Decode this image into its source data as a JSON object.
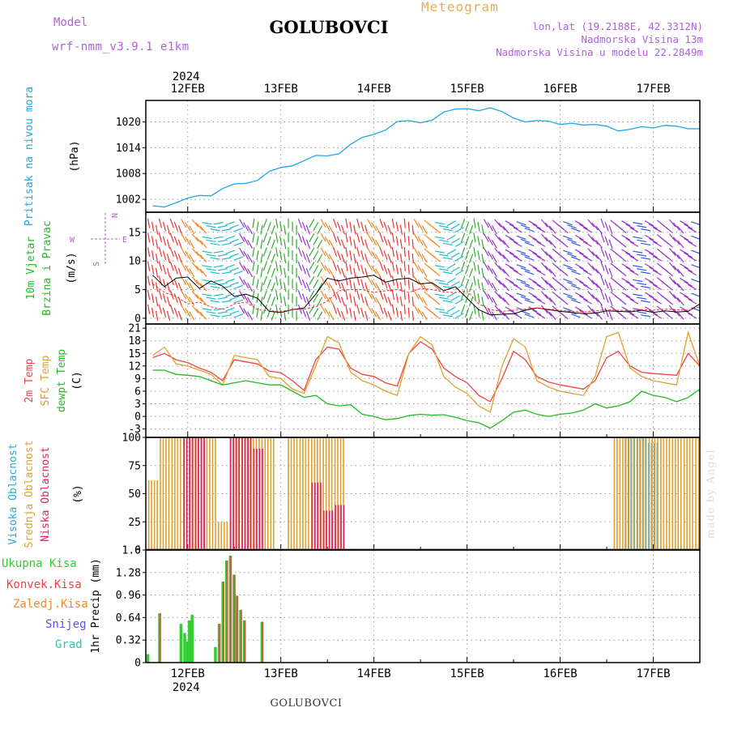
{
  "header": {
    "model_label": "Model",
    "model_name": "wrf-nmm_v3.9.1 e1km",
    "station": "GOLUBOVCI",
    "meteogram_label": "Meteogram",
    "lonlat": "lon,lat (19.2188E, 42.3312N)",
    "elevation": "Nadmorska Visina 13m",
    "model_elevation": "Nadmorska Visina u modelu 22.2849m"
  },
  "footer": {
    "station": "GOLUBOVCI",
    "made_by": "made by Angel"
  },
  "colors": {
    "pressure": "#1ea6e8",
    "wind_speed": "#000000",
    "gust": "#ff2a2a",
    "temp2m": "#ee4444",
    "sfc_temp": "#e0a030",
    "dewpt": "#22bb22",
    "cloud_high": "#22aadd",
    "cloud_mid": "#e0a030",
    "cloud_low": "#dd2266",
    "rain_total": "#33cc33",
    "rain_conv": "#e84444",
    "freezing": "#f08a30",
    "snow": "#5555ee",
    "hail": "#22ccaa"
  },
  "chart_data": [
    {
      "type": "line",
      "title": "",
      "ylabel": "Pritisak na nivou mora",
      "yunit": "(hPa)",
      "ylim": [
        999,
        1025
      ],
      "yticks": [
        1002,
        1008,
        1014,
        1020
      ],
      "x_axis_year": "2024",
      "x_tick_labels": [
        "12FEB",
        "13FEB",
        "14FEB",
        "15FEB",
        "16FEB",
        "17FEB"
      ],
      "x": [
        11.625,
        11.75,
        11.875,
        12.0,
        12.125,
        12.25,
        12.375,
        12.5,
        12.625,
        12.75,
        12.875,
        13.0,
        13.125,
        13.25,
        13.375,
        13.5,
        13.625,
        13.75,
        13.875,
        14.0,
        14.125,
        14.25,
        14.375,
        14.5,
        14.625,
        14.75,
        14.875,
        15.0,
        15.125,
        15.25,
        15.375,
        15.5,
        15.625,
        15.75,
        15.875,
        16.0,
        16.125,
        16.25,
        16.375,
        16.5,
        16.625,
        16.75,
        16.875,
        17.0,
        17.125,
        17.25,
        17.375,
        17.5
      ],
      "series": [
        {
          "name": "",
          "values": [
            1000.5,
            1000.2,
            1001.2,
            1002.3,
            1002.9,
            1002.8,
            1004.5,
            1005.6,
            1005.7,
            1006.4,
            1008.5,
            1009.4,
            1009.8,
            1011.0,
            1012.2,
            1012.1,
            1012.6,
            1014.8,
            1016.4,
            1017.1,
            1018.1,
            1020.1,
            1020.3,
            1019.8,
            1020.4,
            1022.3,
            1023.0,
            1023.1,
            1022.6,
            1023.3,
            1022.4,
            1020.9,
            1020.0,
            1020.3,
            1020.2,
            1019.4,
            1019.7,
            1019.3,
            1019.4,
            1019.0,
            1017.9,
            1018.3,
            1018.9,
            1018.6,
            1019.2,
            1019.0,
            1018.4,
            1018.4
          ]
        }
      ]
    },
    {
      "type": "line",
      "ylabel": "10m Vjetar Brzina i Pravac",
      "yunit": "(m/s)",
      "ylim": [
        -1,
        18.5
      ],
      "yticks": [
        0,
        5,
        10,
        15
      ],
      "compass": {
        "n": "N",
        "s": "S",
        "w": "W",
        "e": "E"
      },
      "x": [
        11.625,
        11.75,
        11.875,
        12.0,
        12.125,
        12.25,
        12.375,
        12.5,
        12.625,
        12.75,
        12.875,
        13.0,
        13.125,
        13.25,
        13.375,
        13.5,
        13.625,
        13.75,
        13.875,
        14.0,
        14.125,
        14.25,
        14.375,
        14.5,
        14.625,
        14.75,
        14.875,
        15.0,
        15.125,
        15.25,
        15.375,
        15.5,
        15.625,
        15.75,
        15.875,
        16.0,
        16.125,
        16.25,
        16.375,
        16.5,
        16.625,
        16.75,
        16.875,
        17.0,
        17.125,
        17.25,
        17.375,
        17.5
      ],
      "series": [
        {
          "name": "",
          "values": [
            7.5,
            5.5,
            7.0,
            7.2,
            5.2,
            6.5,
            5.6,
            3.8,
            4.2,
            3.5,
            1.2,
            1.0,
            1.5,
            1.8,
            4.2,
            7.0,
            6.5,
            7.0,
            7.2,
            7.5,
            6.3,
            6.8,
            7.0,
            6.0,
            6.2,
            4.8,
            5.5,
            3.5,
            1.5,
            0.6,
            0.7,
            0.8,
            1.4,
            1.8,
            1.5,
            1.2,
            1.0,
            0.8,
            0.9,
            1.3,
            1.2,
            1.1,
            1.4,
            1.0,
            1.3,
            1.1,
            1.2,
            2.5
          ]
        },
        {
          "name": "",
          "values": [
            6.0,
            4.5,
            3.8,
            2.5,
            2.8,
            2.0,
            1.5,
            2.5,
            2.8,
            1.5,
            1.3,
            1.2,
            1.5,
            1.6,
            2.0,
            3.0,
            4.8,
            5.0,
            5.0,
            4.5,
            4.8,
            5.0,
            4.5,
            5.2,
            5.0,
            4.6,
            4.5,
            4.8,
            2.5,
            1.5,
            1.2,
            1.4,
            1.6,
            1.8,
            1.6,
            1.4,
            1.2,
            1.1,
            1.3,
            1.5,
            1.4,
            1.3,
            1.5,
            1.4,
            1.6,
            1.5,
            1.4,
            2.0
          ]
        }
      ],
      "wind_vectors": {
        "x": [
          11.625,
          11.75,
          11.875,
          12.0,
          12.125,
          12.25,
          12.375,
          12.5,
          12.625,
          12.75,
          12.875,
          13.0,
          13.125,
          13.25,
          13.375,
          13.5,
          13.625,
          13.75,
          13.875,
          14.0,
          14.125,
          14.25,
          14.375,
          14.5,
          14.625,
          14.75,
          14.875,
          15.0,
          15.125,
          15.25,
          15.375,
          15.5,
          15.625,
          15.75,
          15.875,
          16.0,
          16.125,
          16.25,
          16.375,
          16.5,
          16.625,
          16.75,
          16.875,
          17.0,
          17.125,
          17.25,
          17.375,
          17.5
        ],
        "direction_deg": [
          170,
          165,
          160,
          150,
          140,
          100,
          80,
          70,
          330,
          10,
          20,
          350,
          0,
          340,
          30,
          150,
          160,
          170,
          165,
          150,
          160,
          170,
          175,
          150,
          130,
          100,
          60,
          20,
          350,
          330,
          320,
          300,
          290,
          300,
          320,
          310,
          290,
          300,
          320,
          340,
          310,
          300,
          280,
          300,
          310,
          320,
          300,
          290
        ],
        "speed": [
          7.5,
          5.5,
          7.0,
          7.2,
          5.2,
          6.5,
          5.6,
          3.8,
          4.2,
          3.5,
          1.2,
          1.0,
          1.5,
          1.8,
          4.2,
          7.0,
          6.5,
          7.0,
          7.2,
          7.5,
          6.3,
          6.8,
          7.0,
          6.0,
          6.2,
          4.8,
          5.5,
          3.5,
          1.5,
          0.6,
          0.7,
          0.8,
          1.4,
          1.8,
          1.5,
          1.2,
          1.0,
          0.8,
          0.9,
          1.3,
          1.2,
          1.1,
          1.4,
          1.0,
          1.3,
          1.1,
          1.2,
          2.5
        ]
      }
    },
    {
      "type": "line",
      "ylabel": "2m Temp",
      "ylabel2": "SFC Temp",
      "ylabel3": "dewpt Temp",
      "yunit": "(C)",
      "ylim": [
        -5,
        22
      ],
      "yticks": [
        -3,
        0,
        3,
        6,
        9,
        12,
        15,
        18,
        21
      ],
      "x": [
        11.625,
        11.75,
        11.875,
        12.0,
        12.125,
        12.25,
        12.375,
        12.5,
        12.625,
        12.75,
        12.875,
        13.0,
        13.125,
        13.25,
        13.375,
        13.5,
        13.625,
        13.75,
        13.875,
        14.0,
        14.125,
        14.25,
        14.375,
        14.5,
        14.625,
        14.75,
        14.875,
        15.0,
        15.125,
        15.25,
        15.375,
        15.5,
        15.625,
        15.75,
        15.875,
        16.0,
        16.125,
        16.25,
        16.375,
        16.5,
        16.625,
        16.75,
        16.875,
        17.0,
        17.125,
        17.25,
        17.375,
        17.5
      ],
      "series": [
        {
          "name": "2m Temp",
          "values": [
            14,
            15,
            13.5,
            12.8,
            11.5,
            10.5,
            8.5,
            13.5,
            13,
            12.5,
            10.8,
            10.4,
            8.5,
            6.2,
            13.5,
            16.5,
            16,
            11.5,
            10,
            9.5,
            8,
            7.2,
            15,
            17.8,
            16,
            11.5,
            9.5,
            8,
            5,
            3.5,
            9,
            15.5,
            13.5,
            9.5,
            8.2,
            7.5,
            7,
            6.5,
            8.5,
            14,
            15.5,
            12,
            10.5,
            10.2,
            10,
            9.8,
            15,
            12
          ]
        },
        {
          "name": "SFC Temp",
          "values": [
            14.5,
            16.5,
            12.5,
            12,
            11,
            10,
            7.5,
            14.5,
            14,
            13.5,
            9.5,
            9,
            6.5,
            5.5,
            12,
            19,
            17.5,
            10.5,
            8.5,
            7.5,
            6,
            5,
            15,
            19,
            17,
            9.5,
            7,
            5.5,
            2.5,
            1,
            12,
            18.5,
            16.5,
            8.5,
            7,
            6,
            5.5,
            5,
            9.5,
            19,
            20,
            11.5,
            9.5,
            8.5,
            8,
            7.5,
            20,
            12
          ]
        },
        {
          "name": "dewpt Temp",
          "values": [
            11,
            11,
            10,
            9.8,
            9.5,
            8.5,
            7.5,
            8,
            8.5,
            8,
            7.5,
            7.5,
            6,
            4.5,
            5,
            3,
            2.5,
            2.8,
            0.5,
            0,
            -0.8,
            -0.5,
            0.2,
            0.5,
            0.3,
            0.4,
            -0.2,
            -1,
            -1.5,
            -2.8,
            -1,
            1,
            1.5,
            0.5,
            0,
            0.5,
            0.8,
            1.5,
            3,
            2,
            2.5,
            3.5,
            6,
            5,
            4.5,
            3.5,
            4.5,
            6.5
          ]
        }
      ]
    },
    {
      "type": "bar",
      "ylabel": "Visoka Oblacnost",
      "ylabel2": "Srednja Oblacnost",
      "ylabel3": "Niska Oblacnost",
      "yunit": "(%)",
      "ylim": [
        0,
        100
      ],
      "yticks": [
        0,
        25,
        50,
        75,
        100
      ],
      "x": [
        11.625,
        11.75,
        11.875,
        12.0,
        12.125,
        12.25,
        12.375,
        12.5,
        12.625,
        12.75,
        12.875,
        13.0,
        13.125,
        13.25,
        13.375,
        13.5,
        13.625,
        13.75,
        13.875,
        14.0,
        14.125,
        14.25,
        14.375,
        14.5,
        14.625,
        14.75,
        14.875,
        15.0,
        15.125,
        15.25,
        15.375,
        15.5,
        15.625,
        15.75,
        15.875,
        16.0,
        16.125,
        16.25,
        16.375,
        16.5,
        16.625,
        16.75,
        16.875,
        17.0,
        17.125,
        17.25,
        17.375,
        17.5
      ],
      "series": [
        {
          "name": "Visoka Oblacnost",
          "values": [
            0,
            0,
            0,
            0,
            0,
            0,
            0,
            0,
            0,
            0,
            0,
            0,
            0,
            0,
            0,
            0,
            0,
            0,
            0,
            0,
            0,
            0,
            0,
            0,
            0,
            0,
            0,
            0,
            0,
            0,
            0,
            0,
            0,
            0,
            0,
            0,
            0,
            0,
            0,
            0,
            0,
            100,
            100,
            95,
            0,
            0,
            0,
            0
          ]
        },
        {
          "name": "Srednja Oblacnost",
          "values": [
            62,
            100,
            100,
            100,
            100,
            100,
            25,
            100,
            100,
            100,
            100,
            0,
            100,
            100,
            100,
            100,
            100,
            0,
            0,
            0,
            0,
            0,
            0,
            0,
            0,
            0,
            0,
            0,
            0,
            0,
            0,
            0,
            0,
            0,
            0,
            0,
            0,
            0,
            0,
            0,
            100,
            100,
            100,
            100,
            100,
            100,
            100,
            100
          ]
        },
        {
          "name": "Niska Oblacnost",
          "values": [
            0,
            0,
            0,
            100,
            100,
            0,
            0,
            100,
            100,
            90,
            0,
            0,
            0,
            0,
            60,
            35,
            40,
            0,
            0,
            0,
            0,
            0,
            0,
            0,
            0,
            0,
            0,
            0,
            0,
            0,
            0,
            0,
            0,
            0,
            0,
            0,
            0,
            0,
            0,
            0,
            0,
            0,
            0,
            0,
            0,
            0,
            0,
            0
          ]
        }
      ]
    },
    {
      "type": "bar",
      "ylabel": "1hr Precip",
      "yunit": "(mm)",
      "ylim": [
        0,
        1.6
      ],
      "yticks": [
        0,
        0.32,
        0.64,
        0.96,
        1.28,
        1.6
      ],
      "x_axis_year": "2024",
      "x_tick_labels": [
        "12FEB",
        "13FEB",
        "14FEB",
        "15FEB",
        "16FEB",
        "17FEB"
      ],
      "legend": [
        "Ukupna Kisa",
        "Konvek.Kisa",
        "Zaledj.Kisa",
        "Snijeg",
        "Grad"
      ],
      "x": [
        11.575,
        11.7,
        11.93,
        11.97,
        12.0,
        12.02,
        12.05,
        12.3,
        12.34,
        12.38,
        12.42,
        12.46,
        12.5,
        12.53,
        12.57,
        12.61,
        12.65,
        12.8
      ],
      "series": [
        {
          "name": "Ukupna Kisa",
          "values": [
            0.12,
            0.7,
            0.55,
            0.42,
            0.3,
            0.6,
            0.68,
            0.22,
            0.55,
            1.15,
            1.45,
            1.52,
            1.25,
            0.95,
            0.75,
            0.6,
            0.0,
            0.58
          ]
        },
        {
          "name": "Konvek.Kisa",
          "values": [
            0,
            0.7,
            0,
            0,
            0,
            0,
            0,
            0,
            0.55,
            1.15,
            1.45,
            1.52,
            1.25,
            0.95,
            0.75,
            0.6,
            0,
            0.58
          ]
        },
        {
          "name": "Zaledj.Kisa",
          "values": [
            0,
            0,
            0,
            0,
            0,
            0,
            0,
            0,
            0,
            0,
            0,
            0,
            0,
            0,
            0,
            0,
            0,
            0
          ]
        },
        {
          "name": "Snijeg",
          "values": [
            0,
            0,
            0,
            0,
            0,
            0,
            0,
            0,
            0,
            0,
            0,
            0,
            0,
            0,
            0,
            0,
            0,
            0
          ]
        },
        {
          "name": "Grad",
          "values": [
            0,
            0,
            0,
            0,
            0,
            0,
            0,
            0,
            0,
            0,
            0,
            0,
            0,
            0,
            0,
            0,
            0,
            0
          ]
        }
      ]
    }
  ]
}
